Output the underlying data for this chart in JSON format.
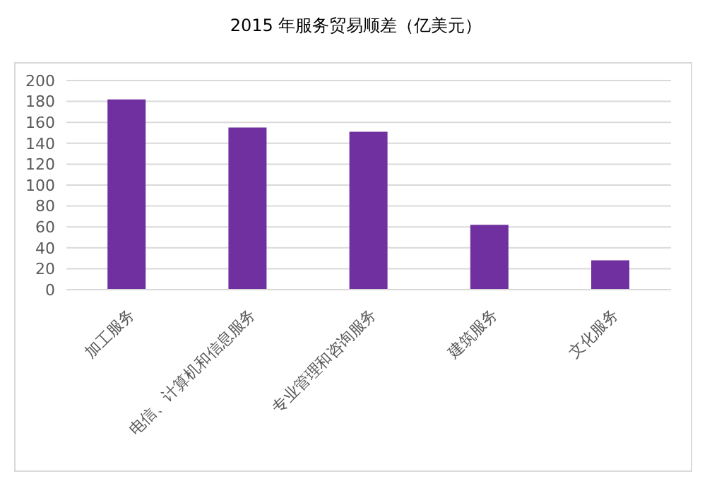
{
  "chart_data": {
    "type": "bar",
    "title": "2015 年服务贸易顺差（亿美元）",
    "categories": [
      "加工服务",
      "电信、计算机和信息服务",
      "专业管理和咨询服务",
      "建筑服务",
      "文化服务"
    ],
    "values": [
      182,
      155,
      151,
      62,
      28
    ],
    "color": "#7030a0",
    "ylim": [
      0,
      200
    ],
    "yticks": [
      0,
      20,
      40,
      60,
      80,
      100,
      120,
      140,
      160,
      180,
      200
    ],
    "grid": "y"
  }
}
